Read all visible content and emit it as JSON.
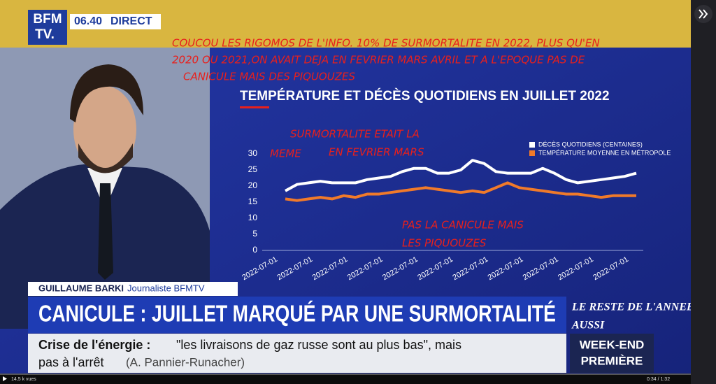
{
  "broadcast": {
    "logo": [
      "BFM",
      "TV."
    ],
    "time": "06.40",
    "live": "DIRECT"
  },
  "annotations": {
    "top": [
      "COUCOU LES RIGOMOS DE L'INFO. 10% DE SURMORTALITE EN 2022, PLUS QU'EN",
      "2020 OU 2021,ON AVAIT DEJA EN FEVRIER MARS AVRIL ET A L'EPOQUE PAS DE",
      "CANICULE MAIS DES PIQUOUZES"
    ],
    "middle": [
      "SURMORTALITE ETAIT LA",
      "MEME",
      "EN FEVRIER MARS"
    ],
    "bottom": [
      "PAS LA CANICULE MAIS",
      "LES PIQUOUZES"
    ],
    "side": [
      "LE RESTE DE L'ANNEE",
      "AUSSI"
    ]
  },
  "chart_data": {
    "type": "line",
    "title": "TEMPÉRATURE ET DÉCÈS QUOTIDIENS EN JUILLET 2022",
    "categories": [
      "2022-07-01",
      null,
      null,
      "2022-07-01",
      null,
      null,
      "2022-07-01",
      null,
      null,
      "2022-07-01",
      null,
      null,
      "2022-07-01",
      null,
      null,
      "2022-07-01",
      null,
      null,
      "2022-07-01",
      null,
      null,
      "2022-07-01",
      null,
      null,
      "2022-07-01",
      null,
      null,
      "2022-07-01",
      null,
      null,
      "2022-07-01"
    ],
    "series": [
      {
        "name": "DÉCÈS QUOTIDIENS (CENTAINES)",
        "color": "#ffffff",
        "values": [
          18.5,
          20.5,
          21,
          21.5,
          21,
          21,
          21,
          22,
          22.5,
          23,
          24.5,
          25.5,
          25.5,
          24,
          24,
          25,
          28,
          27,
          24.5,
          24,
          24,
          24,
          25.5,
          24,
          22,
          21,
          21.5,
          22,
          22.5,
          23,
          24
        ]
      },
      {
        "name": "TEMPÉRATURE MOYENNE EN MÉTROPOLE",
        "color": "#f07a2a",
        "values": [
          16,
          15.5,
          16,
          16.5,
          16,
          17,
          16.5,
          17.5,
          17.5,
          18,
          18.5,
          19,
          19.5,
          19,
          18.5,
          18,
          18.5,
          18,
          19.5,
          21,
          19.5,
          19,
          18.5,
          18,
          17.5,
          17.5,
          17,
          16.5,
          17,
          17,
          17
        ]
      }
    ],
    "ylim": [
      0,
      30
    ],
    "yticks": [
      0,
      5,
      10,
      15,
      20,
      25,
      30
    ],
    "grid": false
  },
  "lower_third": {
    "name": "GUILLAUME BARKI",
    "role": "Journaliste BFMTV",
    "headline": "CANICULE : JUILLET MARQUÉ PAR UNE SURMORTALITÉ",
    "ticker_topic": "Crise de l'énergie :",
    "ticker_quote": [
      "\"les livraisons de gaz russe sont au plus bas\", mais",
      "pas à l'arrêt"
    ],
    "ticker_source": "(A. Pannier-Runacher)",
    "show": [
      "WEEK-END",
      "PREMIÈRE"
    ]
  },
  "player": {
    "views": "14,5 k vues",
    "time": "0:34 / 1:32"
  }
}
